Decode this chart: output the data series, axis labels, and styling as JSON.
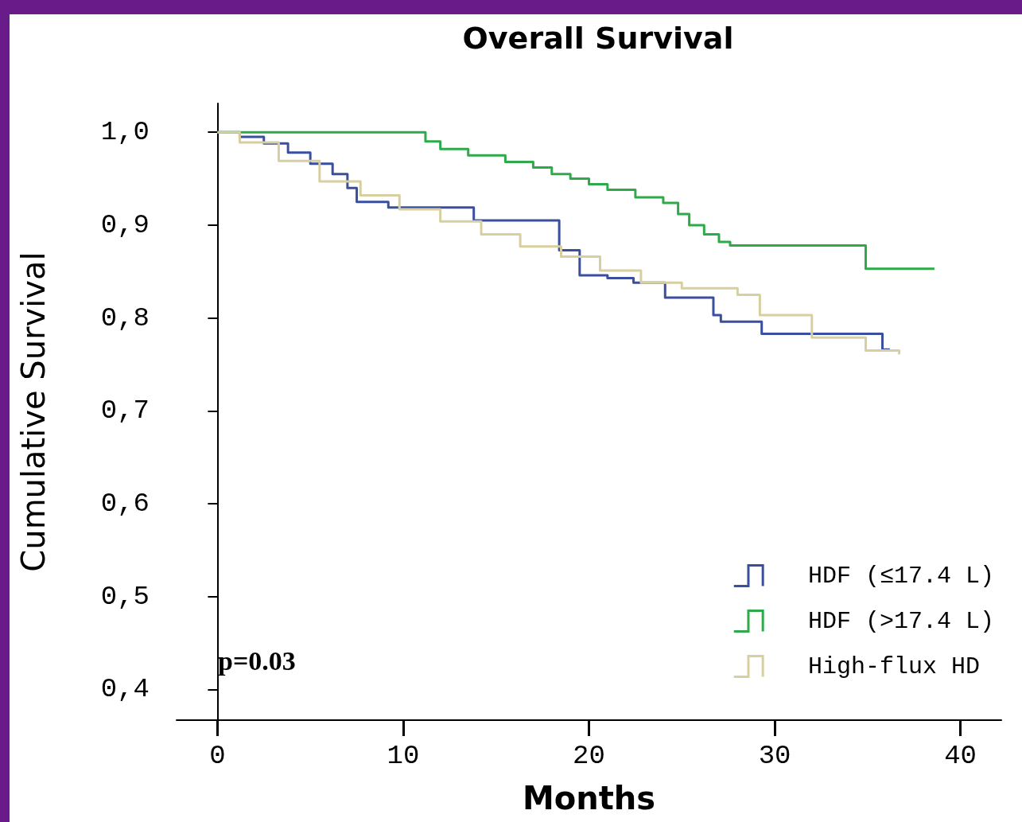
{
  "chart_data": {
    "type": "step",
    "title": "Overall Survival",
    "xlabel": "Months",
    "ylabel": "Cumulative Survival",
    "annotations": [
      "p=0.03"
    ],
    "xlim": [
      -2.2,
      42.2
    ],
    "ylim": [
      0.367,
      1.031
    ],
    "xticks": [
      0,
      10,
      20,
      30,
      40
    ],
    "yticks": [
      {
        "value": 0.4,
        "label": "0,4"
      },
      {
        "value": 0.5,
        "label": "0,5"
      },
      {
        "value": 0.6,
        "label": "0,6"
      },
      {
        "value": 0.7,
        "label": "0,7"
      },
      {
        "value": 0.8,
        "label": "0,8"
      },
      {
        "value": 0.9,
        "label": "0,9"
      },
      {
        "value": 1.0,
        "label": "1,0"
      }
    ],
    "grid": false,
    "legend": "bottom right",
    "series": [
      {
        "name": "HDF (≤17.4 L)",
        "color": "#3a4fa0",
        "x": [
          0,
          1.2,
          2.5,
          3.8,
          5,
          6.2,
          7,
          7.5,
          9.2,
          13.8,
          18.4,
          19.5,
          21,
          22.4,
          24.1,
          26.7,
          27.1,
          29.3,
          35.8,
          36.2
        ],
        "values": [
          1,
          0.995,
          0.988,
          0.978,
          0.966,
          0.955,
          0.94,
          0.925,
          0.919,
          0.905,
          0.873,
          0.846,
          0.843,
          0.838,
          0.822,
          0.803,
          0.796,
          0.783,
          0.766,
          0.766
        ]
      },
      {
        "name": "HDF (>17.4 L)",
        "color": "#2eaa4a",
        "x": [
          0,
          11.2,
          12,
          13.5,
          15.5,
          17,
          18,
          19,
          20,
          21,
          22.5,
          24,
          24.8,
          25.4,
          26.2,
          27,
          27.6,
          34.9,
          38.6
        ],
        "values": [
          1,
          0.99,
          0.982,
          0.975,
          0.968,
          0.962,
          0.955,
          0.95,
          0.944,
          0.938,
          0.93,
          0.924,
          0.912,
          0.9,
          0.89,
          0.882,
          0.878,
          0.853,
          0.853
        ]
      },
      {
        "name": "High-flux HD",
        "color": "#d8cfa0",
        "x": [
          0,
          1.2,
          3.3,
          5.5,
          7.7,
          9.8,
          12,
          14.2,
          16.3,
          18.5,
          20.6,
          22.8,
          25,
          26.7,
          28,
          29.2,
          32,
          34.9,
          36.7
        ],
        "values": [
          1,
          0.989,
          0.969,
          0.947,
          0.932,
          0.917,
          0.904,
          0.89,
          0.877,
          0.866,
          0.851,
          0.838,
          0.832,
          0.832,
          0.825,
          0.803,
          0.779,
          0.765,
          0.761
        ]
      }
    ]
  }
}
